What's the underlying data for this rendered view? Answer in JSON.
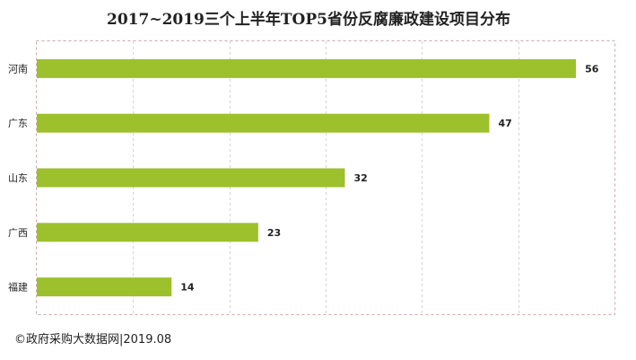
{
  "chart_data": {
    "type": "bar",
    "orientation": "horizontal",
    "title": "2017~2019三个上半年TOP5省份反腐廉政建设项目分布",
    "categories": [
      "河南",
      "广东",
      "山东",
      "广西",
      "福建"
    ],
    "values": [
      56,
      47,
      32,
      23,
      14
    ],
    "xlim": [
      0,
      60
    ],
    "grid": "vertical-dashed",
    "data_labels": true,
    "bar_color": "#9dc12c"
  },
  "source": "©政府采购大数据网|2019.08"
}
